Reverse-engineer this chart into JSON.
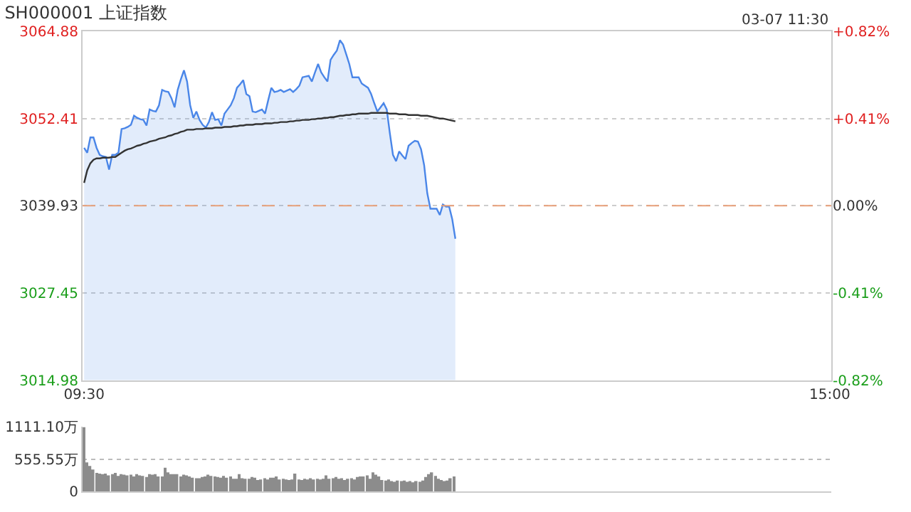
{
  "chart_data": [
    {
      "type": "line",
      "title": "SH000001 上证指数",
      "annotations": [
        "03-07 11:30"
      ],
      "categories": [
        "09:30",
        null,
        null,
        null,
        null,
        null,
        null,
        null,
        null,
        null,
        null,
        null,
        null,
        null,
        null,
        null,
        null,
        null,
        null,
        null,
        null,
        null,
        null,
        null,
        null,
        null,
        null,
        null,
        null,
        null,
        null,
        null,
        null,
        null,
        null,
        null,
        null,
        null,
        null,
        null,
        null,
        null,
        null,
        null,
        null,
        null,
        null,
        null,
        null,
        null,
        null,
        null,
        null,
        null,
        null,
        null,
        null,
        null,
        null,
        null,
        null,
        null,
        null,
        null,
        null,
        null,
        null,
        null,
        null,
        null,
        null,
        null,
        null,
        null,
        null,
        null,
        null,
        null,
        null,
        null,
        null,
        null,
        null,
        null,
        null,
        null,
        null,
        null,
        null,
        null,
        null,
        null,
        null,
        null,
        null,
        null,
        null,
        null,
        null,
        null,
        null,
        null,
        null,
        null,
        null,
        null,
        null,
        null,
        null,
        null,
        null,
        null,
        null,
        null,
        null,
        null,
        null,
        null,
        null,
        null,
        null,
        null,
        null,
        null,
        null,
        null,
        null,
        null,
        null,
        null,
        null,
        null,
        null,
        null,
        null,
        null,
        null,
        null,
        null,
        null,
        null,
        null,
        null,
        null,
        null,
        null,
        null,
        null,
        null,
        null,
        null,
        null,
        null,
        null,
        null,
        null,
        null,
        null,
        null,
        null,
        null,
        null,
        null,
        null,
        null,
        null,
        null,
        null,
        null,
        null,
        null,
        null,
        null,
        null,
        null,
        null,
        null,
        null,
        null,
        null,
        null,
        null,
        null,
        null,
        null,
        null,
        null,
        null,
        null,
        null,
        null,
        null,
        null,
        null,
        null,
        null,
        null,
        null,
        null,
        null,
        null,
        null,
        null,
        null,
        null,
        null,
        null,
        null,
        null,
        null,
        null,
        null,
        null,
        null,
        null,
        null,
        null,
        null,
        null,
        null,
        null,
        null,
        null,
        null,
        null,
        null,
        null,
        null,
        null,
        null,
        null,
        null,
        null,
        null,
        null,
        null,
        null,
        null,
        null,
        "15:00"
      ],
      "ylim": [
        3014.98,
        3064.88
      ],
      "yticks": [
        3014.98,
        3027.45,
        3039.93,
        3052.41,
        3064.88
      ],
      "y2lim": [
        -0.82,
        0.82
      ],
      "y2ticks": [
        {
          "value": -0.82,
          "label": "-0.82%"
        },
        {
          "value": -0.41,
          "label": "-0.41%"
        },
        {
          "value": 0,
          "label": "0.00%"
        },
        {
          "value": 0.41,
          "label": "+0.41%"
        },
        {
          "value": 0.82,
          "label": "+0.82%"
        }
      ],
      "grid": "y",
      "marker": "none",
      "ref_lines": [
        {
          "axis": "y",
          "value": 3039.93,
          "color": "#e8a07a",
          "line_style": "dashed"
        }
      ],
      "series": [
        {
          "type": "area",
          "color": "#4a86e8",
          "values": [
            3048.2,
            3047.5,
            3049.7,
            3049.7,
            3048.2,
            3047.2,
            3047.0,
            3046.9,
            3045.1,
            3047.2,
            3047.2,
            3047.5,
            3050.9,
            3051.0,
            3051.2,
            3051.5,
            3052.8,
            3052.5,
            3052.3,
            3052.2,
            3051.4,
            3053.7,
            3053.5,
            3053.4,
            3054.3,
            3056.5,
            3056.3,
            3056.2,
            3055.3,
            3054.0,
            3056.5,
            3058.0,
            3059.3,
            3057.7,
            3054.3,
            3052.5,
            3053.4,
            3052.2,
            3051.5,
            3051.1,
            3051.9,
            3053.3,
            3052.2,
            3052.3,
            3051.4,
            3053.1,
            3053.7,
            3054.3,
            3055.3,
            3056.8,
            3057.3,
            3057.9,
            3055.9,
            3055.6,
            3053.4,
            3053.3,
            3053.5,
            3053.7,
            3053.1,
            3055.0,
            3056.8,
            3056.2,
            3056.3,
            3056.5,
            3056.2,
            3056.4,
            3056.6,
            3056.2,
            3056.6,
            3057.1,
            3058.3,
            3058.4,
            3058.5,
            3057.7,
            3059.0,
            3060.2,
            3059.0,
            3058.3,
            3057.7,
            3060.8,
            3061.5,
            3062.1,
            3063.6,
            3063.0,
            3061.6,
            3060.2,
            3058.3,
            3058.3,
            3058.3,
            3057.4,
            3057.1,
            3056.8,
            3055.9,
            3054.6,
            3053.4,
            3054.0,
            3054.6,
            3053.7,
            3050.3,
            3047.2,
            3046.3,
            3047.7,
            3047.1,
            3046.6,
            3048.5,
            3048.9,
            3049.2,
            3049.1,
            3048.0,
            3045.7,
            3041.7,
            3039.5,
            3039.5,
            3039.5,
            3038.6,
            3040.1,
            3039.8,
            3039.8,
            3038.0,
            3035.2,
            null,
            null,
            null,
            null,
            null,
            null,
            null,
            null,
            null,
            null,
            null,
            null,
            null,
            null,
            null,
            null,
            null,
            null,
            null,
            null,
            null,
            null,
            null,
            null,
            null,
            null,
            null,
            null,
            null,
            null,
            null,
            null,
            null,
            null,
            null,
            null,
            null,
            null,
            null,
            null,
            null,
            null,
            null,
            null,
            null,
            null,
            null,
            null,
            null,
            null,
            null,
            null,
            null,
            null,
            null,
            null,
            null,
            null,
            null,
            null,
            null,
            null,
            null,
            null,
            null,
            null,
            null,
            null,
            null,
            null,
            null,
            null,
            null,
            null,
            null,
            null,
            null,
            null,
            null,
            null,
            null,
            null,
            null,
            null,
            null,
            null,
            null,
            null,
            null,
            null,
            null,
            null,
            null,
            null,
            null,
            null,
            null,
            null,
            null,
            null,
            null,
            null,
            null,
            null,
            null,
            null,
            null,
            null,
            null,
            null,
            null,
            null,
            null,
            null,
            null,
            null,
            null,
            null,
            null,
            null
          ]
        },
        {
          "type": "line",
          "color": "#333333",
          "values": [
            3043.2,
            3045.0,
            3046.0,
            3046.5,
            3046.7,
            3046.7,
            3046.8,
            3046.8,
            3046.8,
            3046.9,
            3046.9,
            3047.2,
            3047.5,
            3047.8,
            3048.0,
            3048.1,
            3048.3,
            3048.5,
            3048.6,
            3048.8,
            3048.9,
            3049.1,
            3049.2,
            3049.3,
            3049.5,
            3049.6,
            3049.7,
            3049.9,
            3050.0,
            3050.2,
            3050.3,
            3050.5,
            3050.6,
            3050.8,
            3050.8,
            3050.8,
            3050.9,
            3050.9,
            3050.9,
            3051.0,
            3051.0,
            3051.0,
            3051.1,
            3051.1,
            3051.1,
            3051.2,
            3051.2,
            3051.2,
            3051.3,
            3051.3,
            3051.4,
            3051.4,
            3051.5,
            3051.5,
            3051.5,
            3051.6,
            3051.6,
            3051.6,
            3051.7,
            3051.7,
            3051.7,
            3051.8,
            3051.8,
            3051.9,
            3051.9,
            3051.9,
            3052.0,
            3052.0,
            3052.1,
            3052.1,
            3052.2,
            3052.2,
            3052.2,
            3052.3,
            3052.3,
            3052.4,
            3052.4,
            3052.5,
            3052.5,
            3052.6,
            3052.6,
            3052.7,
            3052.8,
            3052.8,
            3052.9,
            3052.9,
            3053.0,
            3053.0,
            3053.1,
            3053.1,
            3053.1,
            3053.1,
            3053.2,
            3053.2,
            3053.2,
            3053.2,
            3053.2,
            3053.2,
            3053.1,
            3053.1,
            3053.1,
            3053.0,
            3053.0,
            3053.0,
            3052.9,
            3052.9,
            3052.9,
            3052.9,
            3052.8,
            3052.8,
            3052.8,
            3052.7,
            3052.6,
            3052.5,
            3052.4,
            3052.4,
            3052.3,
            3052.2,
            3052.1,
            3052.0,
            null,
            null,
            null,
            null,
            null,
            null,
            null,
            null,
            null,
            null,
            null,
            null,
            null,
            null,
            null,
            null,
            null,
            null,
            null,
            null,
            null,
            null,
            null,
            null,
            null,
            null,
            null,
            null,
            null,
            null,
            null,
            null,
            null,
            null,
            null,
            null,
            null,
            null,
            null,
            null,
            null,
            null,
            null,
            null,
            null,
            null,
            null,
            null,
            null,
            null,
            null,
            null,
            null,
            null,
            null,
            null,
            null,
            null,
            null,
            null,
            null,
            null,
            null,
            null,
            null,
            null,
            null,
            null,
            null,
            null,
            null,
            null,
            null,
            null,
            null,
            null,
            null,
            null,
            null,
            null,
            null,
            null,
            null,
            null,
            null,
            null,
            null,
            null,
            null,
            null,
            null,
            null,
            null,
            null,
            null,
            null,
            null,
            null,
            null,
            null,
            null,
            null,
            null,
            null,
            null,
            null,
            null,
            null,
            null,
            null,
            null,
            null,
            null,
            null,
            null,
            null,
            null,
            null,
            null,
            null
          ]
        }
      ]
    },
    {
      "type": "bar",
      "color": "#8c8c8c",
      "tick_labels": "y",
      "grid": "y",
      "ylim": [
        0,
        1111.1
      ],
      "yticks": [
        0,
        {
          "value": 555.55,
          "label": "555.55万"
        },
        {
          "value": 1111.1,
          "label": "1111.10万"
        }
      ],
      "categories": [
        null,
        null,
        null,
        null,
        null,
        null,
        null,
        null,
        null,
        null,
        null,
        null,
        null,
        null,
        null,
        null,
        null,
        null,
        null,
        null,
        null,
        null,
        null,
        null,
        null,
        null,
        null,
        null,
        null,
        null,
        null,
        null,
        null,
        null,
        null,
        null,
        null,
        null,
        null,
        null,
        null,
        null,
        null,
        null,
        null,
        null,
        null,
        null,
        null,
        null,
        null,
        null,
        null,
        null,
        null,
        null,
        null,
        null,
        null,
        null,
        null,
        null,
        null,
        null,
        null,
        null,
        null,
        null,
        null,
        null,
        null,
        null,
        null,
        null,
        null,
        null,
        null,
        null,
        null,
        null,
        null,
        null,
        null,
        null,
        null,
        null,
        null,
        null,
        null,
        null,
        null,
        null,
        null,
        null,
        null,
        null,
        null,
        null,
        null,
        null,
        null,
        null,
        null,
        null,
        null,
        null,
        null,
        null,
        null,
        null,
        null,
        null,
        null,
        null,
        null,
        null,
        null,
        null,
        null,
        null,
        null,
        null,
        null,
        null,
        null,
        null,
        null,
        null,
        null,
        null,
        null,
        null,
        null,
        null,
        null,
        null,
        null,
        null,
        null,
        null,
        null,
        null,
        null,
        null,
        null,
        null,
        null,
        null,
        null,
        null,
        null,
        null,
        null,
        null,
        null,
        null,
        null,
        null,
        null,
        null,
        null,
        null,
        null,
        null,
        null,
        null,
        null,
        null,
        null,
        null,
        null,
        null,
        null,
        null,
        null,
        null,
        null,
        null,
        null,
        null,
        null,
        null,
        null,
        null,
        null,
        null,
        null,
        null,
        null,
        null,
        null,
        null,
        null,
        null,
        null,
        null,
        null,
        null,
        null,
        null,
        null,
        null,
        null,
        null,
        null,
        null,
        null,
        null,
        null,
        null,
        null,
        null,
        null,
        null,
        null,
        null,
        null,
        null,
        null,
        null,
        null,
        null,
        null,
        null,
        null,
        null,
        null,
        null,
        null,
        null,
        null,
        null,
        null,
        null,
        null,
        null,
        null,
        null,
        null,
        null,
        null
      ],
      "values": [
        1100,
        500,
        440,
        380,
        320,
        310,
        300,
        310,
        280,
        300,
        320,
        270,
        300,
        290,
        280,
        290,
        260,
        300,
        280,
        270,
        250,
        300,
        290,
        300,
        260,
        260,
        410,
        330,
        300,
        300,
        300,
        260,
        290,
        280,
        260,
        240,
        230,
        230,
        250,
        260,
        290,
        270,
        260,
        250,
        240,
        270,
        240,
        260,
        220,
        220,
        300,
        230,
        220,
        220,
        250,
        240,
        200,
        210,
        230,
        210,
        240,
        240,
        260,
        210,
        220,
        210,
        200,
        210,
        310,
        210,
        200,
        220,
        210,
        230,
        210,
        220,
        210,
        220,
        280,
        220,
        230,
        250,
        220,
        230,
        200,
        220,
        230,
        210,
        250,
        260,
        260,
        280,
        220,
        330,
        290,
        260,
        200,
        190,
        210,
        180,
        170,
        190,
        180,
        190,
        170,
        180,
        160,
        180,
        170,
        190,
        250,
        300,
        330,
        270,
        220,
        200,
        180,
        190,
        230,
        260,
        null,
        null,
        null,
        null,
        null,
        null,
        null,
        null,
        null,
        null,
        null,
        null,
        null,
        null,
        null,
        null,
        null,
        null,
        null,
        null,
        null,
        null,
        null,
        null,
        null,
        null,
        null,
        null,
        null,
        null,
        null,
        null,
        null,
        null,
        null,
        null,
        null,
        null,
        null,
        null,
        null,
        null,
        null,
        null,
        null,
        null,
        null,
        null,
        null,
        null,
        null,
        null,
        null,
        null,
        null,
        null,
        null,
        null,
        null,
        null,
        null,
        null,
        null,
        null,
        null,
        null,
        null,
        null,
        null,
        null,
        null,
        null,
        null,
        null,
        null,
        null,
        null,
        null,
        null,
        null,
        null,
        null,
        null,
        null,
        null,
        null,
        null,
        null,
        null,
        null,
        null,
        null,
        null,
        null,
        null,
        null,
        null,
        null,
        null,
        null,
        null,
        null,
        null,
        null,
        null,
        null,
        null,
        null,
        null,
        null,
        null,
        null,
        null,
        null,
        null,
        null,
        null,
        null,
        null,
        null,
        null
      ]
    }
  ]
}
